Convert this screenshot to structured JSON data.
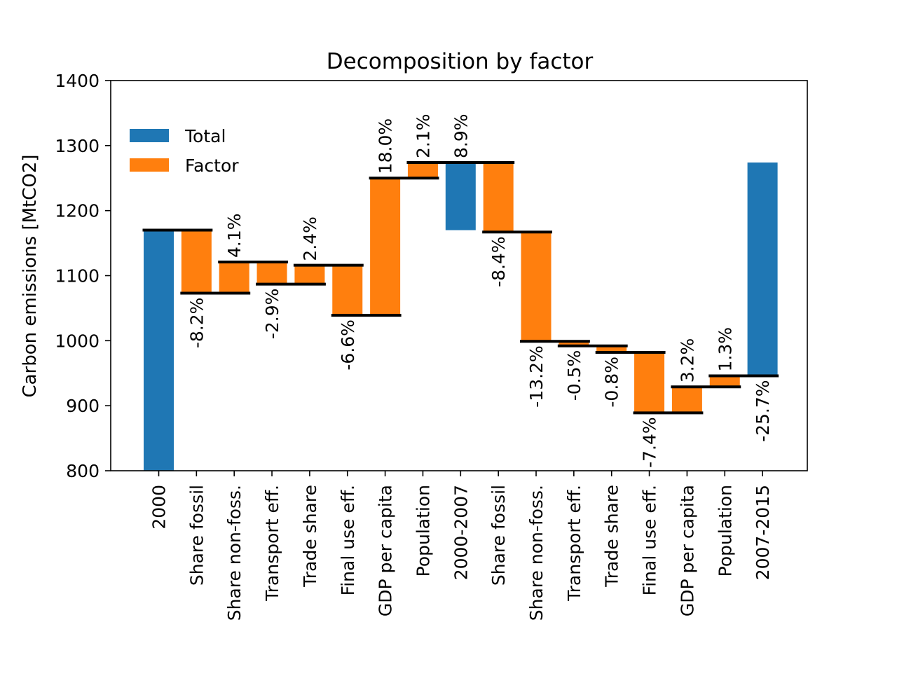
{
  "chart_data": {
    "type": "bar",
    "title": "Decomposition by factor",
    "xlabel": "",
    "ylabel": "Carbon emissions [MtCO2]",
    "ylim": [
      800,
      1400
    ],
    "yticks": [
      800,
      900,
      1000,
      1100,
      1200,
      1300,
      1400
    ],
    "grid": false,
    "legend": {
      "position": "upper-left",
      "entries": [
        {
          "name": "Total",
          "color": "#1f77b4"
        },
        {
          "name": "Factor",
          "color": "#ff7f0e"
        }
      ]
    },
    "bars": [
      {
        "category": "2000",
        "kind": "total",
        "start": 800,
        "end": 1170,
        "label": ""
      },
      {
        "category": "Share fossil",
        "kind": "factor",
        "start": 1170,
        "end": 1073,
        "label": "-8.2%"
      },
      {
        "category": "Share non-foss.",
        "kind": "factor",
        "start": 1073,
        "end": 1121,
        "label": "4.1%"
      },
      {
        "category": "Transport eff.",
        "kind": "factor",
        "start": 1121,
        "end": 1087,
        "label": "-2.9%"
      },
      {
        "category": "Trade share",
        "kind": "factor",
        "start": 1087,
        "end": 1116,
        "label": "2.4%"
      },
      {
        "category": "Final use eff.",
        "kind": "factor",
        "start": 1116,
        "end": 1039,
        "label": "-6.6%"
      },
      {
        "category": "GDP per capita",
        "kind": "factor",
        "start": 1039,
        "end": 1250,
        "label": "18.0%"
      },
      {
        "category": "Population",
        "kind": "factor",
        "start": 1250,
        "end": 1274,
        "label": "2.1%"
      },
      {
        "category": "2000-2007",
        "kind": "total",
        "start": 1170,
        "end": 1274,
        "label": "8.9%"
      },
      {
        "category": "Share fossil",
        "kind": "factor",
        "start": 1274,
        "end": 1167,
        "label": "-8.4%"
      },
      {
        "category": "Share non-foss.",
        "kind": "factor",
        "start": 1167,
        "end": 999,
        "label": "-13.2%"
      },
      {
        "category": "Transport eff.",
        "kind": "factor",
        "start": 999,
        "end": 992,
        "label": "-0.5%"
      },
      {
        "category": "Trade share",
        "kind": "factor",
        "start": 992,
        "end": 982,
        "label": "-0.8%"
      },
      {
        "category": "Final use eff.",
        "kind": "factor",
        "start": 982,
        "end": 889,
        "label": "-7.4%"
      },
      {
        "category": "GDP per capita",
        "kind": "factor",
        "start": 889,
        "end": 929,
        "label": "3.2%"
      },
      {
        "category": "Population",
        "kind": "factor",
        "start": 929,
        "end": 946,
        "label": "1.3%"
      },
      {
        "category": "2007-2015",
        "kind": "total",
        "start": 946,
        "end": 1274,
        "label": "-25.7%"
      }
    ],
    "connectors": [
      1170,
      1073,
      1121,
      1087,
      1116,
      1039,
      1250,
      1274,
      1274,
      1167,
      999,
      992,
      982,
      889,
      929,
      946
    ]
  }
}
